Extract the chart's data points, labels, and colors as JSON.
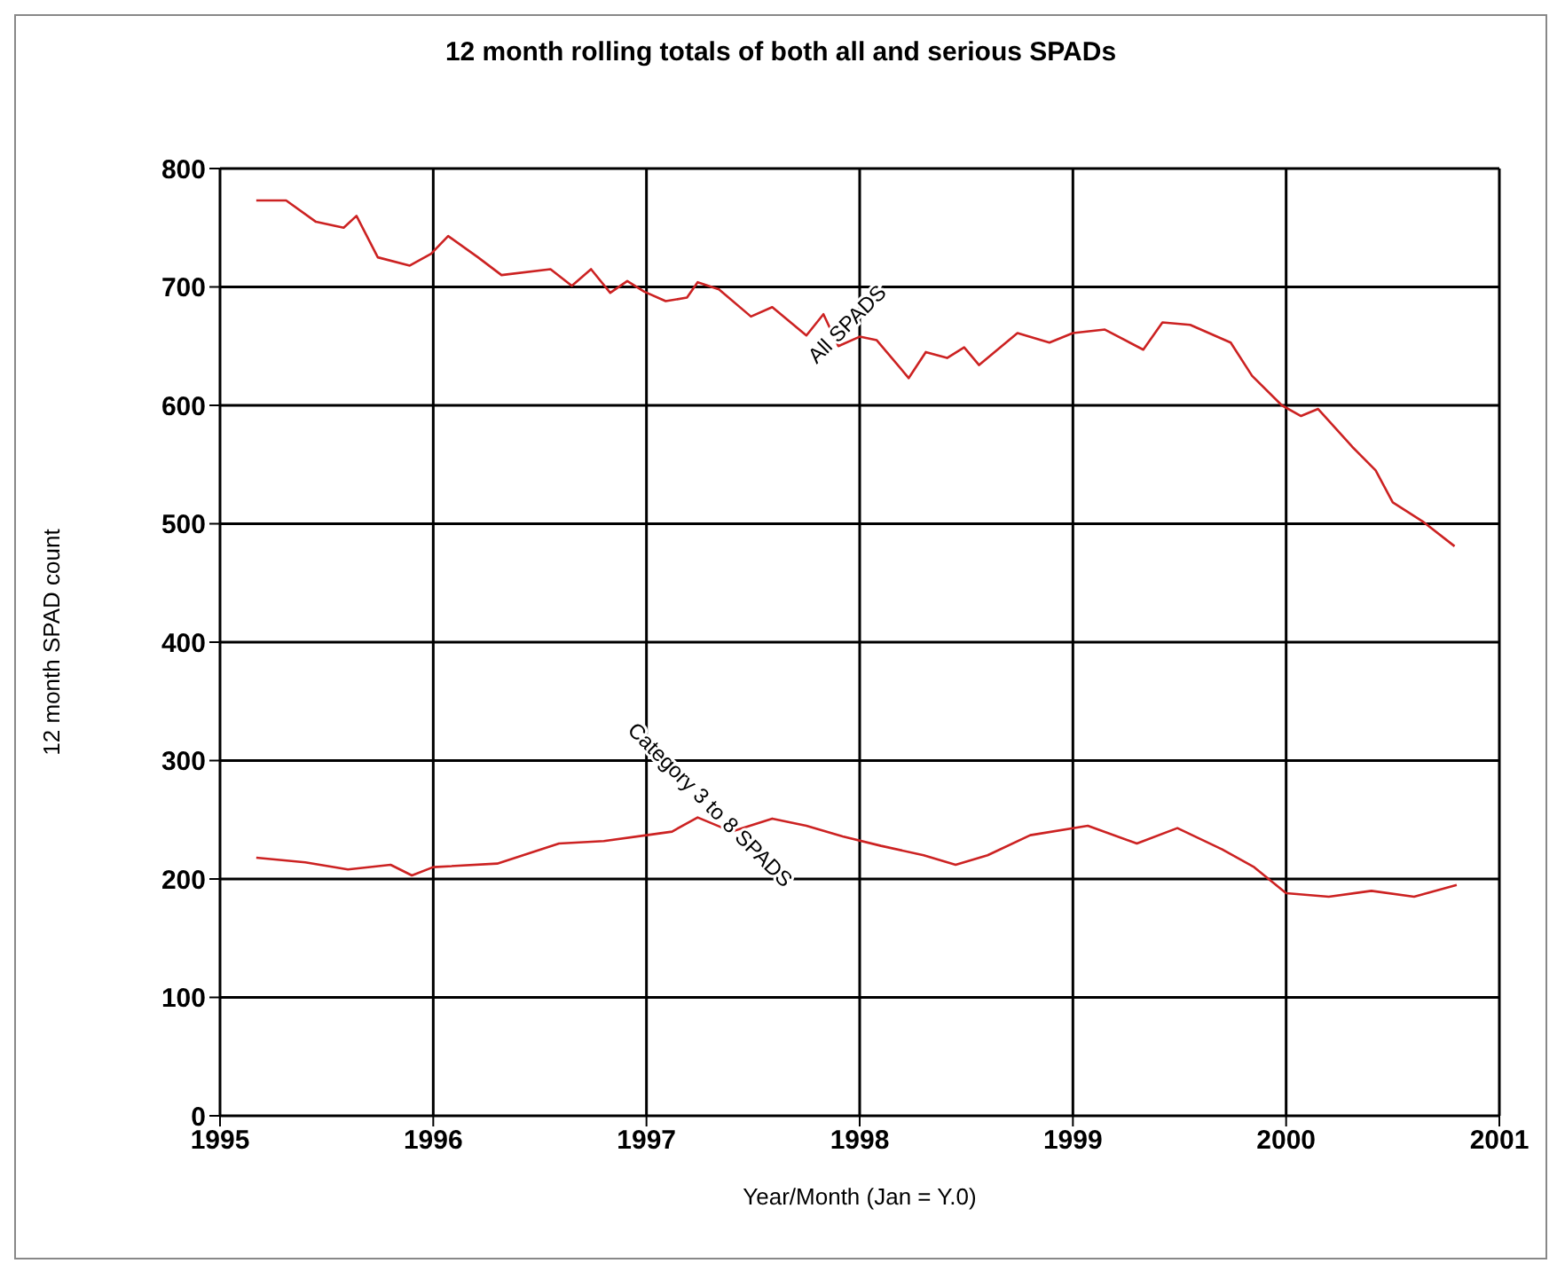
{
  "chart_data": {
    "type": "line",
    "title": "12 month rolling totals of both all and serious SPADs",
    "xlabel": "Year/Month (Jan = Y.0)",
    "ylabel": "12 month SPAD count",
    "xlim": [
      1995,
      2001
    ],
    "xticks": [
      1995,
      1996,
      1997,
      1998,
      1999,
      2000,
      2001
    ],
    "ylim": [
      0,
      800
    ],
    "yticks": [
      0,
      100,
      200,
      300,
      400,
      500,
      600,
      700,
      800
    ],
    "grid": true,
    "marker": "none",
    "line_style": "solid",
    "series": [
      {
        "name": "All SPADS",
        "color": "#cc2222",
        "x": [
          1995.17,
          1995.31,
          1995.45,
          1995.58,
          1995.64,
          1995.74,
          1995.89,
          1995.99,
          1996.07,
          1996.21,
          1996.32,
          1996.55,
          1996.65,
          1996.74,
          1996.83,
          1996.91,
          1996.99,
          1997.09,
          1997.19,
          1997.24,
          1997.34,
          1997.49,
          1997.59,
          1997.75,
          1997.83,
          1997.9,
          1998.0,
          1998.08,
          1998.23,
          1998.31,
          1998.41,
          1998.49,
          1998.56,
          1998.74,
          1998.89,
          1999.0,
          1999.15,
          1999.33,
          1999.42,
          1999.55,
          1999.74,
          1999.84,
          1999.98,
          2000.07,
          2000.15,
          2000.31,
          2000.42,
          2000.5,
          2000.64,
          2000.79
        ],
        "values": [
          773,
          773,
          755,
          750,
          760,
          725,
          718,
          728,
          743,
          725,
          710,
          715,
          701,
          715,
          695,
          705,
          696,
          688,
          691,
          704,
          698,
          675,
          683,
          659,
          677,
          650,
          658,
          655,
          623,
          645,
          640,
          649,
          634,
          661,
          653,
          661,
          664,
          647,
          670,
          668,
          653,
          625,
          600,
          591,
          597,
          565,
          545,
          518,
          502,
          481
        ]
      },
      {
        "name": "Category 3 to 8 SPADS",
        "color": "#cc2222",
        "x": [
          1995.17,
          1995.4,
          1995.6,
          1995.8,
          1995.9,
          1996.0,
          1996.3,
          1996.59,
          1996.8,
          1997.0,
          1997.12,
          1997.24,
          1997.4,
          1997.59,
          1997.75,
          1997.92,
          1998.1,
          1998.3,
          1998.45,
          1998.6,
          1998.8,
          1999.07,
          1999.3,
          1999.49,
          1999.7,
          1999.85,
          2000.0,
          2000.2,
          2000.4,
          2000.6,
          2000.8
        ],
        "values": [
          218,
          214,
          208,
          212,
          203,
          210,
          213,
          230,
          232,
          237,
          240,
          252,
          240,
          251,
          245,
          236,
          228,
          220,
          212,
          220,
          237,
          245,
          230,
          243,
          225,
          210,
          188,
          185,
          190,
          185,
          195
        ]
      }
    ]
  }
}
